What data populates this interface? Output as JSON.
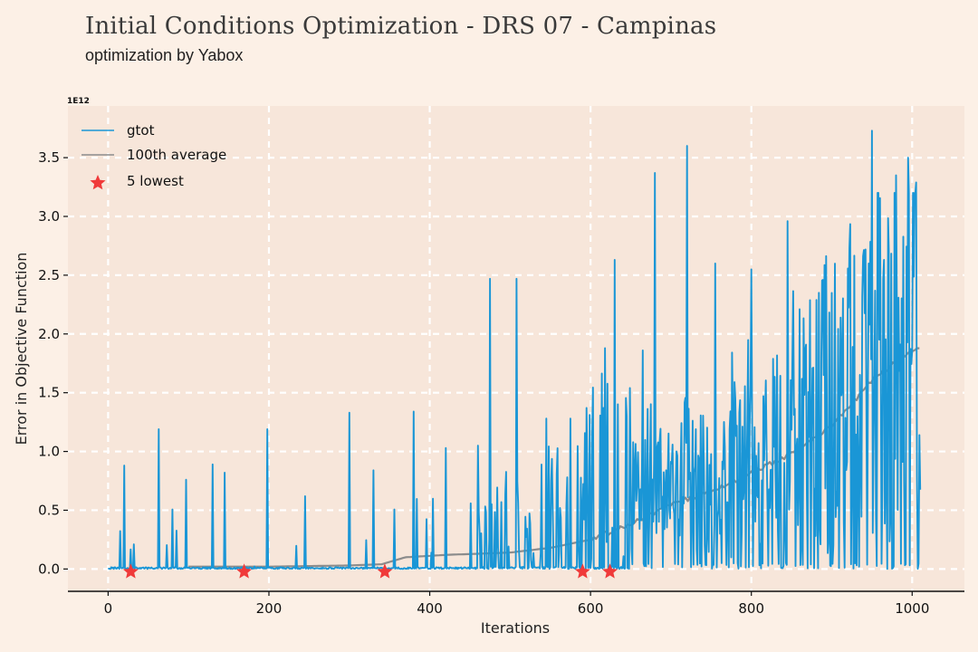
{
  "header": {
    "title": "Initial Conditions Optimization - DRS 07 - Campinas",
    "subtitle": "optimization by Yabox"
  },
  "colors": {
    "background": "#fcf0e6",
    "plot_area": "#f7e6da",
    "grid": "#ffffff",
    "series_main": "#1a96d6",
    "series_average": "#8c8c8c",
    "marker": "#f03a3a"
  },
  "chart_data": {
    "type": "line",
    "title": "Initial Conditions Optimization - DRS 07 - Campinas",
    "subtitle": "optimization by Yabox",
    "xlabel": "Iterations",
    "ylabel": "Error in Objective Function",
    "y_scale_label": "1E12",
    "xlim": [
      -50,
      1065
    ],
    "ylim": [
      -0.19,
      3.94
    ],
    "x_ticks": [
      "0",
      "200",
      "400",
      "600",
      "800",
      "1000"
    ],
    "x_tick_values": [
      0,
      200,
      400,
      600,
      800,
      1000
    ],
    "y_ticks": [
      "0.0",
      "0.5",
      "1.0",
      "1.5",
      "2.0",
      "2.5",
      "3.0",
      "3.5"
    ],
    "y_tick_values": [
      0.0,
      0.5,
      1.0,
      1.5,
      2.0,
      2.5,
      3.0,
      3.5
    ],
    "grid": true,
    "legend_position": "top-left",
    "legend": [
      "gtot",
      "100th average",
      "5 lowest"
    ],
    "series": [
      {
        "name": "gtot",
        "kind": "line",
        "x_range": [
          0,
          1010
        ],
        "y_range": [
          0.0,
          3.73
        ],
        "spikes": [
          [
            20,
            0.88
          ],
          [
            32,
            0.21
          ],
          [
            63,
            1.19
          ],
          [
            97,
            0.76
          ],
          [
            130,
            0.89
          ],
          [
            145,
            0.82
          ],
          [
            198,
            1.19
          ],
          [
            245,
            0.62
          ],
          [
            300,
            1.33
          ],
          [
            330,
            0.84
          ],
          [
            380,
            1.34
          ],
          [
            420,
            1.03
          ],
          [
            460,
            1.05
          ],
          [
            475,
            2.47
          ],
          [
            508,
            2.47
          ],
          [
            545,
            1.28
          ],
          [
            575,
            1.28
          ],
          [
            595,
            1.37
          ],
          [
            618,
            1.88
          ],
          [
            630,
            2.63
          ],
          [
            665,
            1.86
          ],
          [
            680,
            3.37
          ],
          [
            720,
            3.6
          ],
          [
            755,
            2.6
          ],
          [
            800,
            2.55
          ],
          [
            845,
            2.96
          ],
          [
            900,
            2.35
          ],
          [
            950,
            3.73
          ],
          [
            980,
            3.35
          ],
          [
            995,
            3.5
          ],
          [
            1005,
            3.29
          ]
        ]
      },
      {
        "name": "100th average",
        "kind": "line",
        "points": [
          [
            100,
            0.02
          ],
          [
            200,
            0.02
          ],
          [
            300,
            0.03
          ],
          [
            340,
            0.04
          ],
          [
            370,
            0.1
          ],
          [
            420,
            0.12
          ],
          [
            500,
            0.14
          ],
          [
            550,
            0.18
          ],
          [
            600,
            0.25
          ],
          [
            650,
            0.38
          ],
          [
            700,
            0.55
          ],
          [
            750,
            0.66
          ],
          [
            800,
            0.82
          ],
          [
            850,
            0.98
          ],
          [
            900,
            1.22
          ],
          [
            950,
            1.6
          ],
          [
            990,
            1.82
          ],
          [
            1010,
            1.9
          ]
        ]
      },
      {
        "name": "5 lowest",
        "kind": "scatter",
        "points": [
          [
            27,
            0.0
          ],
          [
            168,
            0.0
          ],
          [
            343,
            0.0
          ],
          [
            589,
            0.0
          ],
          [
            623,
            0.0
          ]
        ]
      }
    ]
  }
}
